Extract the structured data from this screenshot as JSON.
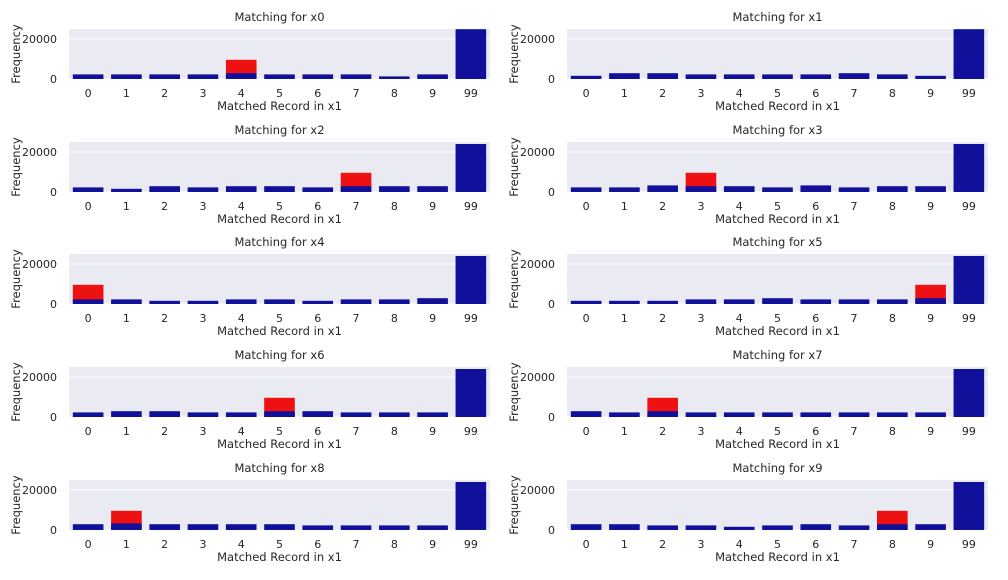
{
  "colors": {
    "blue": "#10109a",
    "red": "#ee1111",
    "panel_bg": "#eaeaf2",
    "grid": "#ffffff"
  },
  "chart_data": [
    {
      "type": "bar",
      "title": "Matching for x0",
      "xlabel": "Matched Record in x1",
      "ylabel": "Frequency",
      "ylim": [
        0,
        25000
      ],
      "yticks": [
        0,
        20000
      ],
      "grid": true,
      "categories": [
        "0",
        "1",
        "2",
        "3",
        "4",
        "5",
        "6",
        "7",
        "8",
        "9",
        "99"
      ],
      "series": [
        {
          "color": "#ee1111",
          "values": [
            0,
            0,
            0,
            0,
            9600,
            0,
            0,
            0,
            0,
            0,
            0
          ]
        },
        {
          "color": "#10109a",
          "values": [
            2300,
            2300,
            2300,
            2300,
            2900,
            2300,
            2300,
            2300,
            1300,
            2300,
            24900
          ]
        }
      ]
    },
    {
      "type": "bar",
      "title": "Matching for x1",
      "xlabel": "Matched Record in x1",
      "ylabel": "Frequency",
      "ylim": [
        0,
        25000
      ],
      "yticks": [
        0,
        20000
      ],
      "grid": true,
      "categories": [
        "0",
        "1",
        "2",
        "3",
        "4",
        "5",
        "6",
        "7",
        "8",
        "9",
        "99"
      ],
      "series": [
        {
          "color": "#ee1111",
          "values": [
            0,
            0,
            0,
            0,
            0,
            0,
            0,
            0,
            0,
            0,
            0
          ]
        },
        {
          "color": "#10109a",
          "values": [
            1600,
            2900,
            2900,
            2300,
            2300,
            2300,
            2300,
            2900,
            2300,
            1600,
            24900
          ]
        }
      ]
    },
    {
      "type": "bar",
      "title": "Matching for x2",
      "xlabel": "Matched Record in x1",
      "ylabel": "Frequency",
      "ylim": [
        0,
        25000
      ],
      "yticks": [
        0,
        20000
      ],
      "grid": true,
      "categories": [
        "0",
        "1",
        "2",
        "3",
        "4",
        "5",
        "6",
        "7",
        "8",
        "9",
        "99"
      ],
      "series": [
        {
          "color": "#ee1111",
          "values": [
            0,
            0,
            0,
            0,
            0,
            0,
            0,
            9600,
            0,
            0,
            0
          ]
        },
        {
          "color": "#10109a",
          "values": [
            2300,
            1600,
            2900,
            2300,
            2900,
            2900,
            2300,
            2900,
            2900,
            2900,
            24000
          ]
        }
      ]
    },
    {
      "type": "bar",
      "title": "Matching for x3",
      "xlabel": "Matched Record in x1",
      "ylabel": "Frequency",
      "ylim": [
        0,
        25000
      ],
      "yticks": [
        0,
        20000
      ],
      "grid": true,
      "categories": [
        "0",
        "1",
        "2",
        "3",
        "4",
        "5",
        "6",
        "7",
        "8",
        "9",
        "99"
      ],
      "series": [
        {
          "color": "#ee1111",
          "values": [
            0,
            0,
            0,
            9600,
            0,
            0,
            0,
            0,
            0,
            0,
            0
          ]
        },
        {
          "color": "#10109a",
          "values": [
            2300,
            2300,
            3300,
            2900,
            2900,
            2300,
            3300,
            2300,
            2900,
            2900,
            24000
          ]
        }
      ]
    },
    {
      "type": "bar",
      "title": "Matching for x4",
      "xlabel": "Matched Record in x1",
      "ylabel": "Frequency",
      "ylim": [
        0,
        25000
      ],
      "yticks": [
        0,
        20000
      ],
      "grid": true,
      "categories": [
        "0",
        "1",
        "2",
        "3",
        "4",
        "5",
        "6",
        "7",
        "8",
        "9",
        "99"
      ],
      "series": [
        {
          "color": "#ee1111",
          "values": [
            9600,
            0,
            0,
            0,
            0,
            0,
            0,
            0,
            0,
            0,
            0
          ]
        },
        {
          "color": "#10109a",
          "values": [
            2300,
            2300,
            1600,
            1600,
            2300,
            2300,
            1600,
            2300,
            2300,
            2900,
            24000
          ]
        }
      ]
    },
    {
      "type": "bar",
      "title": "Matching for x5",
      "xlabel": "Matched Record in x1",
      "ylabel": "Frequency",
      "ylim": [
        0,
        25000
      ],
      "yticks": [
        0,
        20000
      ],
      "grid": true,
      "categories": [
        "0",
        "1",
        "2",
        "3",
        "4",
        "5",
        "6",
        "7",
        "8",
        "9",
        "99"
      ],
      "series": [
        {
          "color": "#ee1111",
          "values": [
            0,
            0,
            0,
            0,
            0,
            0,
            0,
            0,
            0,
            9600,
            0
          ]
        },
        {
          "color": "#10109a",
          "values": [
            1600,
            1600,
            1600,
            2300,
            2300,
            2900,
            2300,
            2300,
            2300,
            2900,
            24000
          ]
        }
      ]
    },
    {
      "type": "bar",
      "title": "Matching for x6",
      "xlabel": "Matched Record in x1",
      "ylabel": "Frequency",
      "ylim": [
        0,
        25000
      ],
      "yticks": [
        0,
        20000
      ],
      "grid": true,
      "categories": [
        "0",
        "1",
        "2",
        "3",
        "4",
        "5",
        "6",
        "7",
        "8",
        "9",
        "99"
      ],
      "series": [
        {
          "color": "#ee1111",
          "values": [
            0,
            0,
            0,
            0,
            0,
            9600,
            0,
            0,
            0,
            0,
            0
          ]
        },
        {
          "color": "#10109a",
          "values": [
            2300,
            2900,
            2900,
            2300,
            2300,
            2900,
            2900,
            2300,
            2300,
            2300,
            24000
          ]
        }
      ]
    },
    {
      "type": "bar",
      "title": "Matching for x7",
      "xlabel": "Matched Record in x1",
      "ylabel": "Frequency",
      "ylim": [
        0,
        25000
      ],
      "yticks": [
        0,
        20000
      ],
      "grid": true,
      "categories": [
        "0",
        "1",
        "2",
        "3",
        "4",
        "5",
        "6",
        "7",
        "8",
        "9",
        "99"
      ],
      "series": [
        {
          "color": "#ee1111",
          "values": [
            0,
            0,
            9600,
            0,
            0,
            0,
            0,
            0,
            0,
            0,
            0
          ]
        },
        {
          "color": "#10109a",
          "values": [
            2900,
            2300,
            2900,
            2300,
            2300,
            2300,
            2300,
            2300,
            2300,
            2300,
            24000
          ]
        }
      ]
    },
    {
      "type": "bar",
      "title": "Matching for x8",
      "xlabel": "Matched Record in x1",
      "ylabel": "Frequency",
      "ylim": [
        0,
        25000
      ],
      "yticks": [
        0,
        20000
      ],
      "grid": true,
      "categories": [
        "0",
        "1",
        "2",
        "3",
        "4",
        "5",
        "6",
        "7",
        "8",
        "9",
        "99"
      ],
      "series": [
        {
          "color": "#ee1111",
          "values": [
            0,
            9600,
            0,
            0,
            0,
            0,
            0,
            0,
            0,
            0,
            0
          ]
        },
        {
          "color": "#10109a",
          "values": [
            2900,
            3300,
            2900,
            2900,
            2900,
            2900,
            2300,
            2300,
            2300,
            2300,
            24000
          ]
        }
      ]
    },
    {
      "type": "bar",
      "title": "Matching for x9",
      "xlabel": "Matched Record in x1",
      "ylabel": "Frequency",
      "ylim": [
        0,
        25000
      ],
      "yticks": [
        0,
        20000
      ],
      "grid": true,
      "categories": [
        "0",
        "1",
        "2",
        "3",
        "4",
        "5",
        "6",
        "7",
        "8",
        "9",
        "99"
      ],
      "series": [
        {
          "color": "#ee1111",
          "values": [
            0,
            0,
            0,
            0,
            0,
            0,
            0,
            0,
            9600,
            0,
            0
          ]
        },
        {
          "color": "#10109a",
          "values": [
            2900,
            2900,
            2300,
            2300,
            1600,
            2300,
            2900,
            2300,
            2900,
            2900,
            24000
          ]
        }
      ]
    }
  ]
}
